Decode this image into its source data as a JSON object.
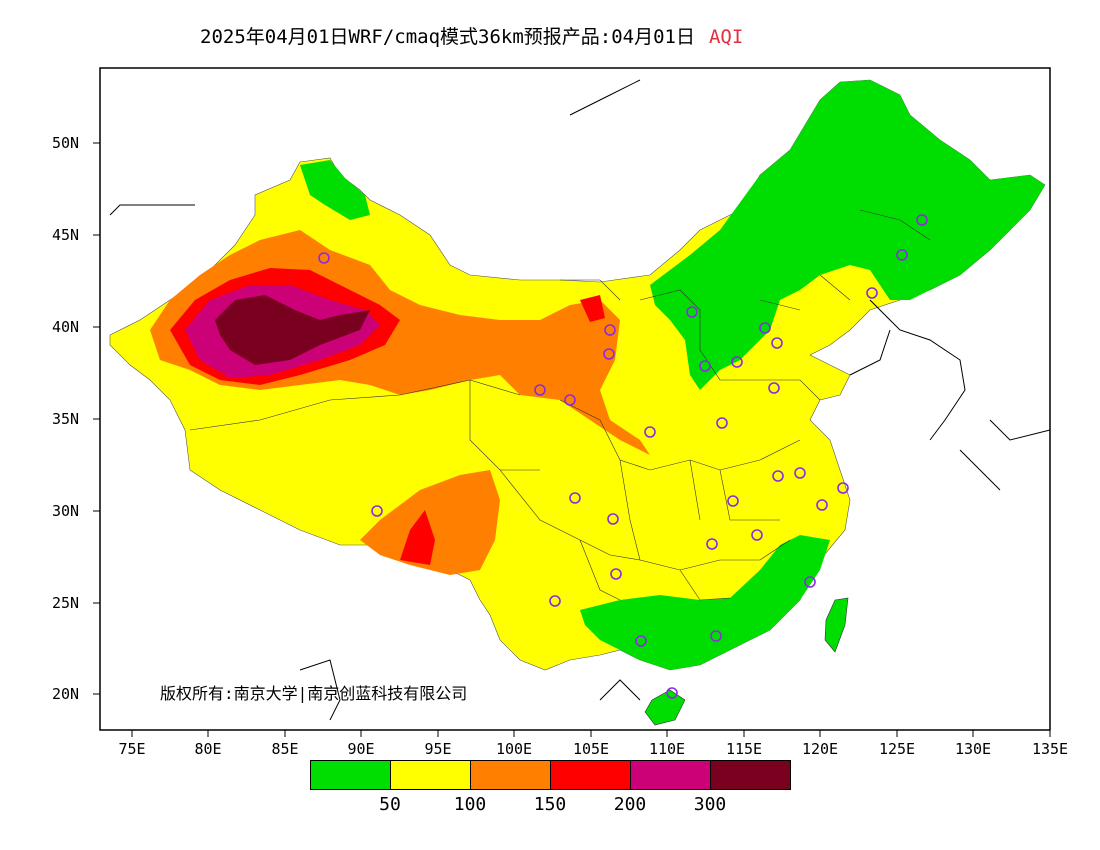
{
  "header": {
    "title": "2025年04月01日WRF/cmaq模式36km预报产品:04月01日",
    "variable": "AQI"
  },
  "credit": "版权所有:南京大学|南京创蓝科技有限公司",
  "axes": {
    "y_labels": [
      "50N",
      "45N",
      "40N",
      "35N",
      "30N",
      "25N",
      "20N"
    ],
    "x_labels": [
      "75E",
      "80E",
      "85E",
      "90E",
      "95E",
      "100E",
      "105E",
      "110E",
      "115E",
      "120E",
      "125E",
      "130E",
      "135E"
    ]
  },
  "legend": {
    "colors": [
      "#00dd00",
      "#ffff00",
      "#ff8000",
      "#ff0000",
      "#cc0077",
      "#7a0020"
    ],
    "labels": [
      "50",
      "100",
      "150",
      "200",
      "300"
    ]
  }
}
